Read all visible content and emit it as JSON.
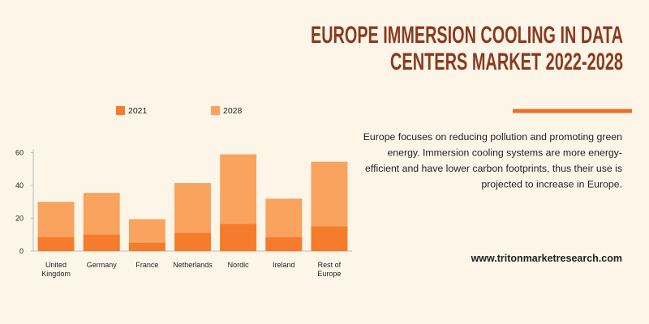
{
  "chart_data": {
    "type": "bar",
    "title": [
      "EUROPE IMMERSION COOLING IN DATA",
      "CENTERS MARKET 2022-2028"
    ],
    "description": [
      "Europe focuses on reducing pollution and promoting green",
      "energy. Immersion cooling systems are more energy-",
      "efficient and have lower carbon footprints, thus their use is",
      "projected to increase in Europe."
    ],
    "website": "www.tritonmarketresearch.com",
    "categories": [
      "United Kingdom",
      "Germany",
      "France",
      "Netherlands",
      "Nordic",
      "Ireland",
      "Rest of Europe"
    ],
    "series": [
      {
        "name": "2021",
        "color": "#f47c2c",
        "values": [
          8.5,
          10,
          5,
          11,
          16.5,
          8.5,
          15
        ]
      },
      {
        "name": "2028",
        "color": "#f9a35e",
        "values": [
          30,
          35.5,
          19.5,
          41.5,
          59,
          32,
          54.5
        ]
      }
    ],
    "ylim": [
      0,
      60
    ],
    "yticks": [
      0,
      20,
      40,
      60
    ],
    "grid": false,
    "legend": "top"
  }
}
